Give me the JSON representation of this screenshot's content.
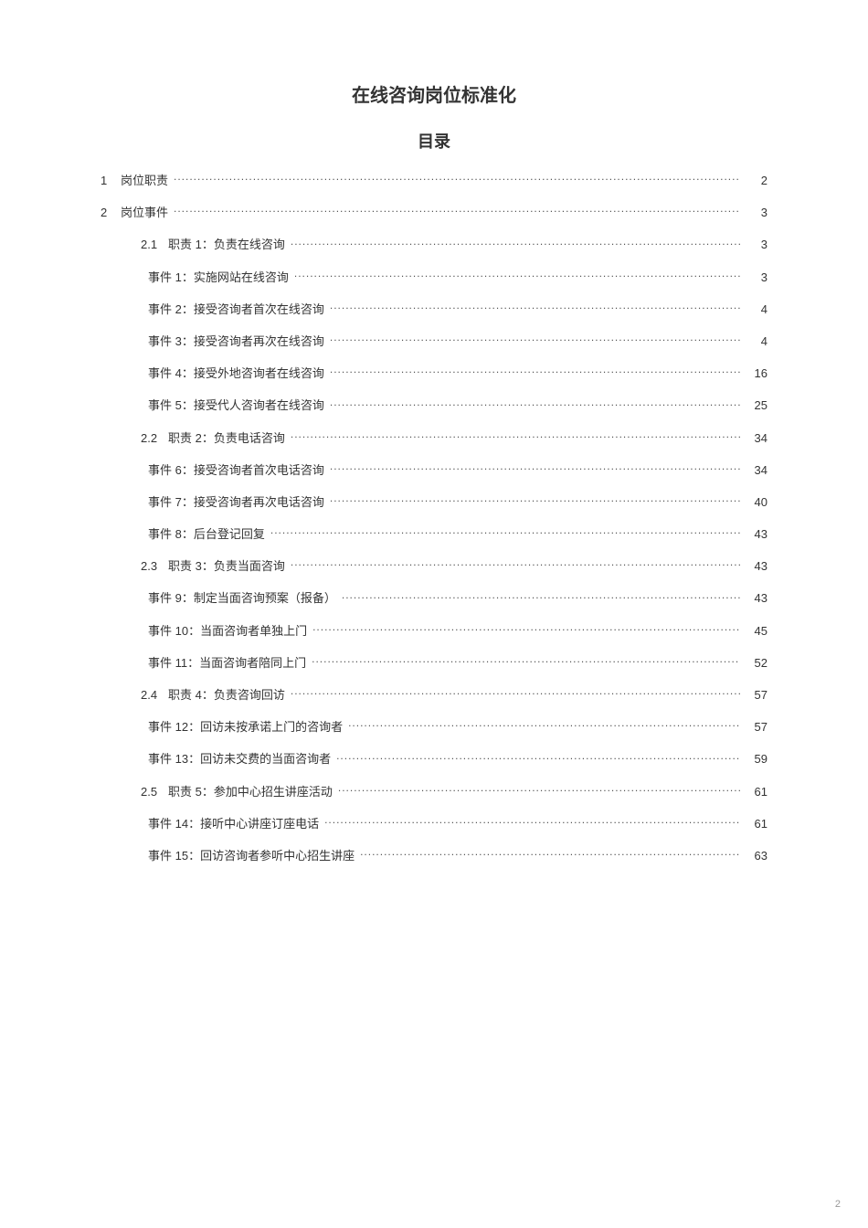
{
  "title": "在线咨询岗位标准化",
  "subtitle": "目录",
  "page_number": "2",
  "entries": [
    {
      "indent": 1,
      "num": "1",
      "sub": "",
      "label": "",
      "desc": "岗位职责",
      "page": "2"
    },
    {
      "indent": 1,
      "num": "2",
      "sub": "",
      "label": "",
      "desc": "岗位事件",
      "page": "3"
    },
    {
      "indent": 2,
      "num": "",
      "sub": "2.1",
      "label": "职责 1：",
      "desc": "负责在线咨询",
      "page": "3"
    },
    {
      "indent": 3,
      "num": "",
      "sub": "",
      "label": "事件 1：",
      "desc": "实施网站在线咨询",
      "page": "3"
    },
    {
      "indent": 3,
      "num": "",
      "sub": "",
      "label": "事件 2：",
      "desc": "接受咨询者首次在线咨询",
      "page": "4"
    },
    {
      "indent": 3,
      "num": "",
      "sub": "",
      "label": "事件 3：",
      "desc": "接受咨询者再次在线咨询",
      "page": "4"
    },
    {
      "indent": 3,
      "num": "",
      "sub": "",
      "label": "事件 4：",
      "desc": "接受外地咨询者在线咨询",
      "page": "16"
    },
    {
      "indent": 3,
      "num": "",
      "sub": "",
      "label": "事件 5：",
      "desc": "接受代人咨询者在线咨询",
      "page": "25"
    },
    {
      "indent": 2,
      "num": "",
      "sub": "2.2",
      "label": "职责 2：",
      "desc": "负责电话咨询",
      "page": "34"
    },
    {
      "indent": 3,
      "num": "",
      "sub": "",
      "label": "事件 6：",
      "desc": "接受咨询者首次电话咨询",
      "page": "34"
    },
    {
      "indent": 3,
      "num": "",
      "sub": "",
      "label": "事件 7：",
      "desc": "接受咨询者再次电话咨询",
      "page": "40"
    },
    {
      "indent": 3,
      "num": "",
      "sub": "",
      "label": "事件 8：",
      "desc": "后台登记回复",
      "page": "43"
    },
    {
      "indent": 2,
      "num": "",
      "sub": "2.3",
      "label": "职责 3：",
      "desc": "负责当面咨询",
      "page": "43"
    },
    {
      "indent": 3,
      "num": "",
      "sub": "",
      "label": "事件 9：",
      "desc": "制定当面咨询预案（报备）",
      "page": "43"
    },
    {
      "indent": 3,
      "num": "",
      "sub": "",
      "label": "事件 10：",
      "desc": "当面咨询者单独上门",
      "page": "45"
    },
    {
      "indent": 3,
      "num": "",
      "sub": "",
      "label": "事件 11：",
      "desc": "当面咨询者陪同上门",
      "page": "52"
    },
    {
      "indent": 2,
      "num": "",
      "sub": "2.4",
      "label": "职责 4：",
      "desc": "负责咨询回访",
      "page": "57"
    },
    {
      "indent": 3,
      "num": "",
      "sub": "",
      "label": "事件 12：",
      "desc": "回访未按承诺上门的咨询者",
      "page": "57"
    },
    {
      "indent": 3,
      "num": "",
      "sub": "",
      "label": "事件 13：",
      "desc": "回访未交费的当面咨询者",
      "page": "59"
    },
    {
      "indent": 2,
      "num": "",
      "sub": "2.5",
      "label": "职责 5：",
      "desc": "参加中心招生讲座活动",
      "page": "61"
    },
    {
      "indent": 3,
      "num": "",
      "sub": "",
      "label": "事件 14：",
      "desc": "接听中心讲座订座电话",
      "page": "61"
    },
    {
      "indent": 3,
      "num": "",
      "sub": "",
      "label": "事件 15：",
      "desc": "回访咨询者参听中心招生讲座",
      "page": "63"
    }
  ]
}
